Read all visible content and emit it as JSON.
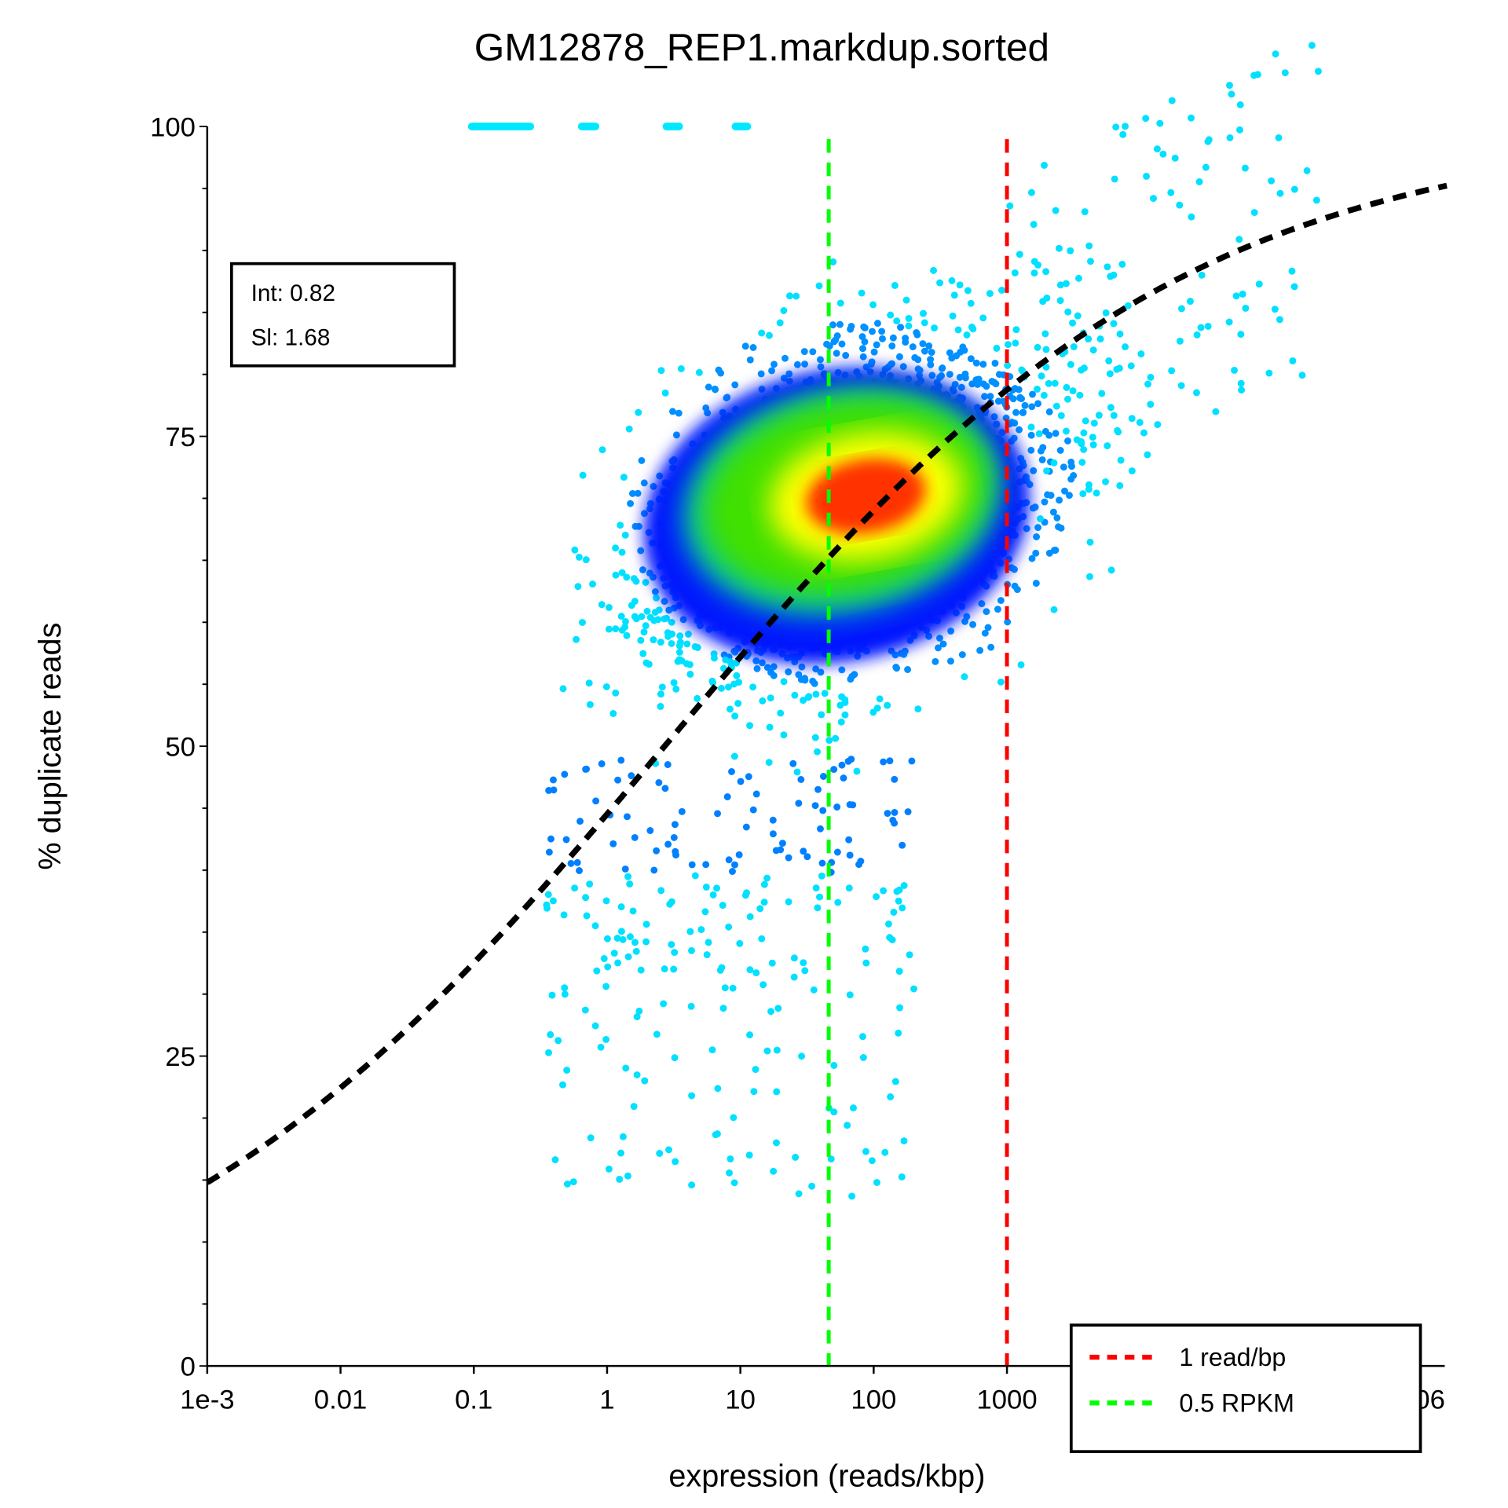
{
  "chart_data": {
    "type": "scatter",
    "title": "GM12878_REP1.markdup.sorted",
    "xlabel": "expression (reads/kbp)",
    "ylabel": "% duplicate reads",
    "x_scale": "log",
    "xlim": [
      0.001,
      2000000
    ],
    "ylim": [
      0,
      100
    ],
    "x_ticks": [
      {
        "value": 0.001,
        "label": "1e-3"
      },
      {
        "value": 0.01,
        "label": "0.01"
      },
      {
        "value": 0.1,
        "label": "0.1"
      },
      {
        "value": 1,
        "label": "1"
      },
      {
        "value": 10,
        "label": "10"
      },
      {
        "value": 100,
        "label": "100"
      },
      {
        "value": 1000,
        "label": "1000"
      },
      {
        "value": 1000000,
        "label": "1e+06"
      }
    ],
    "y_ticks": [
      {
        "value": 0,
        "label": "0"
      },
      {
        "value": 25,
        "label": "25"
      },
      {
        "value": 50,
        "label": "50"
      },
      {
        "value": 75,
        "label": "75"
      },
      {
        "value": 100,
        "label": "100"
      }
    ],
    "fit_box": {
      "intercept": "Int: 0.82",
      "slope": "Sl: 1.68"
    },
    "fit_curve": {
      "color": "#000000",
      "style": "dashed"
    },
    "reference_lines": [
      {
        "label": "1 read/bp",
        "x": 1000,
        "color": "#ff0000",
        "style": "dashed"
      },
      {
        "label": "0.5 RPKM",
        "x": 46,
        "color": "#00ff00",
        "style": "dashed"
      }
    ],
    "legend_position": "bottom-right",
    "density_colors": [
      "#00e5ff",
      "#0000ff",
      "#00ff00",
      "#ffff00",
      "#ff0000"
    ],
    "density_peak": {
      "x": 100,
      "y": 70
    },
    "horizontal_streaks_y": [
      0,
      25,
      33.3,
      40,
      50,
      60,
      66.7,
      75,
      80,
      100
    ],
    "grid": false
  }
}
